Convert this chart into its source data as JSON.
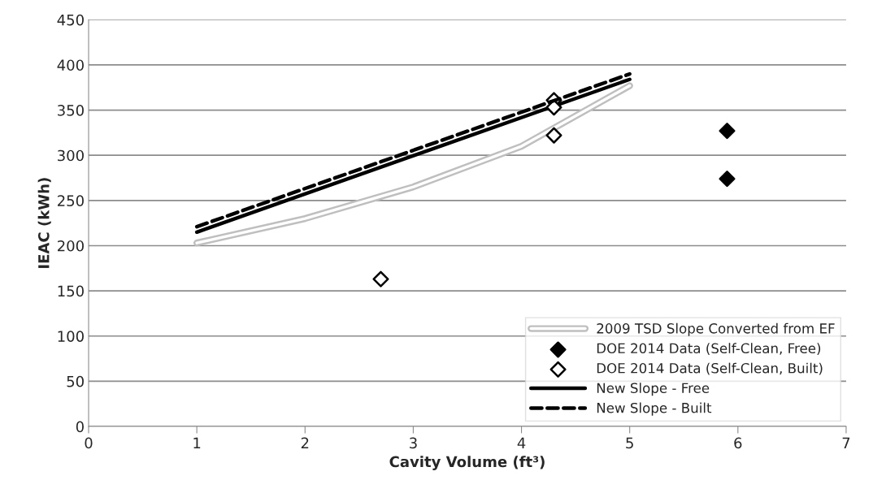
{
  "chart_data": {
    "type": "line",
    "xlabel": "Cavity Volume (ft³)",
    "ylabel": "IEAC (kWh)",
    "xlim": [
      0,
      7
    ],
    "xticks": [
      0,
      1,
      2,
      3,
      4,
      5,
      6,
      7
    ],
    "ylim": [
      0,
      450
    ],
    "yticks": [
      0,
      50,
      100,
      150,
      200,
      250,
      300,
      350,
      400,
      450
    ],
    "grid": "y",
    "legend": "bottom right",
    "series": [
      {
        "name": "2009 TSD Slope Converted from EF",
        "color": "#bfbfbf",
        "x": [
          1,
          2,
          3,
          4,
          5
        ],
        "values": [
          203,
          230,
          265,
          310,
          377
        ],
        "marker": "none",
        "line_style": "solid"
      },
      {
        "name": "DOE 2014 Data (Self-Clean, Free)",
        "type": "scatter",
        "color": "#000000",
        "x": [
          5.9,
          5.9
        ],
        "values": [
          327,
          274
        ],
        "marker": "diamond"
      },
      {
        "name": "DOE 2014 Data (Self-Clean, Built)",
        "type": "scatter",
        "color": "#ffffff",
        "x": [
          2.7,
          4.3,
          4.3,
          4.3
        ],
        "values": [
          163,
          361,
          353,
          322
        ],
        "marker": "diamond"
      },
      {
        "name": "New Slope - Free",
        "color": "#000000",
        "x": [
          1,
          5
        ],
        "values": [
          215,
          384
        ],
        "marker": "none",
        "line_style": "solid"
      },
      {
        "name": "New Slope - Built",
        "color": "#000000",
        "x": [
          1,
          5
        ],
        "values": [
          221,
          390
        ],
        "marker": "none",
        "line_style": "dashed"
      }
    ]
  }
}
